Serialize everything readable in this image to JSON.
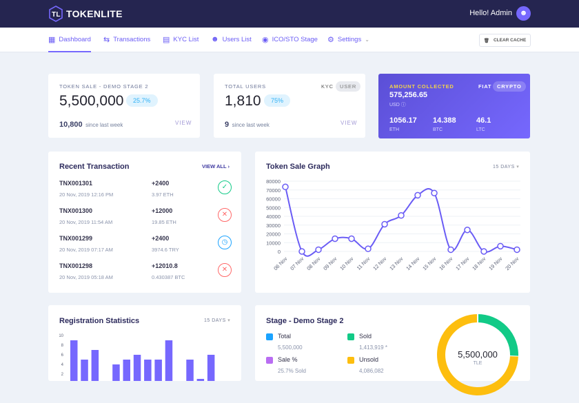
{
  "header": {
    "brand": "TOKENLITE",
    "greeting": "Hello! Admin"
  },
  "nav": {
    "items": [
      {
        "label": "Dashboard",
        "icon": "grid-icon"
      },
      {
        "label": "Transactions",
        "icon": "arrows-icon"
      },
      {
        "label": "KYC List",
        "icon": "document-icon"
      },
      {
        "label": "Users List",
        "icon": "user-icon"
      },
      {
        "label": "ICO/STO Stage",
        "icon": "coins-icon"
      },
      {
        "label": "Settings",
        "icon": "gear-icon"
      }
    ],
    "clear_cache": "CLEAR CACHE"
  },
  "token_sale": {
    "label": "TOKEN SALE - DEMO STAGE 2",
    "value": "5,500,000",
    "percent": "25.7%",
    "weekly": "10,800",
    "weekly_text": "since last week",
    "view": "VIEW"
  },
  "users": {
    "label": "TOTAL USERS",
    "tab_kyc": "KYC",
    "tab_user": "USER",
    "value": "1,810",
    "percent": "75%",
    "weekly": "9",
    "weekly_text": "since last week",
    "view": "VIEW"
  },
  "amount": {
    "label": "AMOUNT COLLECTED",
    "tab_fiat": "FIAT",
    "tab_crypto": "CRYPTO",
    "value": "575,256.65",
    "currency": "USD",
    "coins": [
      {
        "value": "1056.17",
        "code": "ETH"
      },
      {
        "value": "14.388",
        "code": "BTC"
      },
      {
        "value": "46.1",
        "code": "LTC"
      }
    ]
  },
  "transactions": {
    "title": "Recent Transaction",
    "view_all": "VIEW ALL",
    "rows": [
      {
        "id": "TNX001301",
        "date": "20 Nov, 2019 12:16 PM",
        "amount": "+2400",
        "sub": "3.97 ETH",
        "status": "approved"
      },
      {
        "id": "TNX001300",
        "date": "20 Nov, 2019 11:54 AM",
        "amount": "+12000",
        "sub": "19.85 ETH",
        "status": "canceled"
      },
      {
        "id": "TNX001299",
        "date": "20 Nov, 2019 07:17 AM",
        "amount": "+2400",
        "sub": "3974.6 TRY",
        "status": "pending"
      },
      {
        "id": "TNX001298",
        "date": "20 Nov, 2019 05:18 AM",
        "amount": "+12010.8",
        "sub": "0.430387 BTC",
        "status": "canceled"
      }
    ]
  },
  "token_graph": {
    "title": "Token Sale Graph",
    "range": "15 DAYS"
  },
  "registration": {
    "title": "Registration Statistics",
    "range": "15 DAYS"
  },
  "stage": {
    "title": "Stage - Demo Stage 2",
    "items": [
      {
        "label": "Total",
        "value": "5,500,000",
        "color": "#1ba3ff"
      },
      {
        "label": "Sold",
        "value": "1,413,919 *",
        "color": "#12ca87"
      },
      {
        "label": "Sale %",
        "value": "25.7% Sold",
        "color": "#b96df2"
      },
      {
        "label": "Unsold",
        "value": "4,086,082",
        "color": "#fdbe0f"
      }
    ],
    "center_value": "5,500,000",
    "center_unit": "TLE"
  },
  "chart_data": [
    {
      "type": "line",
      "categories": [
        "06 Nov",
        "07 Nov",
        "08 Nov",
        "09 Nov",
        "10 Nov",
        "11 Nov",
        "12 Nov",
        "13 Nov",
        "14 Nov",
        "15 Nov",
        "16 Nov",
        "17 Nov",
        "18 Nov",
        "19 Nov",
        "20 Nov"
      ],
      "values": [
        73500,
        0,
        2000,
        14500,
        14500,
        3000,
        31000,
        41000,
        64000,
        66500,
        2000,
        24500,
        0,
        6000,
        2000
      ],
      "ylim": [
        0,
        80000
      ],
      "yticks": [
        0,
        10000,
        20000,
        30000,
        40000,
        50000,
        60000,
        70000,
        80000
      ],
      "color": "#6a5cf5",
      "grid": true
    },
    {
      "type": "bar",
      "values": [
        9,
        5,
        7,
        0,
        4,
        5,
        6,
        5,
        5,
        9,
        0,
        5,
        1,
        6
      ],
      "ylim": [
        0,
        10
      ],
      "yticks": [
        2,
        4,
        6,
        8,
        10
      ],
      "color": "#7668fe"
    },
    {
      "type": "pie",
      "values": [
        1413919,
        4086082
      ],
      "labels": [
        "Sold",
        "Unsold"
      ],
      "colors": [
        "#12ca87",
        "#fdbe0f"
      ]
    }
  ]
}
